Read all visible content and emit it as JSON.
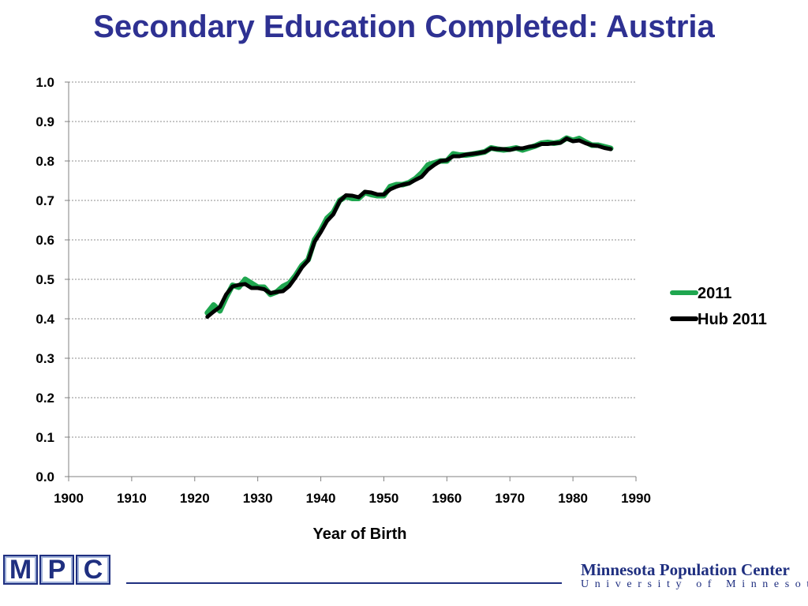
{
  "slide": {
    "title": "Secondary Education Completed: Austria"
  },
  "footer": {
    "logo_letters": [
      "M",
      "P",
      "C"
    ],
    "org_name": "Minnesota Population Center",
    "org_sub": "University of Minnesota"
  },
  "colors": {
    "title": "#2e3192",
    "series_2011": "#1fa64f",
    "series_hub_2011": "#000000",
    "gridline": "#8c8c8c",
    "brand": "#1f2f80"
  },
  "chart_data": {
    "type": "line",
    "title": "Secondary Education Completed: Austria",
    "xlabel": "Year of Birth",
    "ylabel": "",
    "xlim": [
      1900,
      1990
    ],
    "ylim": [
      0.0,
      1.0
    ],
    "x_ticks": [
      "1900",
      "1910",
      "1920",
      "1930",
      "1940",
      "1950",
      "1960",
      "1970",
      "1980",
      "1990"
    ],
    "y_ticks": [
      "0.0",
      "0.1",
      "0.2",
      "0.3",
      "0.4",
      "0.5",
      "0.6",
      "0.7",
      "0.8",
      "0.9",
      "1.0"
    ],
    "grid": "horizontal-dashed",
    "legend_position": "right",
    "series": [
      {
        "name": "2011",
        "color": "#1fa64f",
        "x": [
          1922,
          1923,
          1924,
          1925,
          1926,
          1927,
          1928,
          1929,
          1930,
          1931,
          1932,
          1933,
          1934,
          1935,
          1936,
          1937,
          1938,
          1939,
          1940,
          1941,
          1942,
          1943,
          1944,
          1945,
          1946,
          1947,
          1948,
          1949,
          1950,
          1951,
          1952,
          1953,
          1954,
          1955,
          1956,
          1957,
          1958,
          1959,
          1960,
          1961,
          1962,
          1963,
          1964,
          1965,
          1966,
          1967,
          1968,
          1969,
          1970,
          1971,
          1972,
          1973,
          1974,
          1975,
          1976,
          1977,
          1978,
          1979,
          1980,
          1981,
          1982,
          1983,
          1984,
          1985,
          1986
        ],
        "y": [
          0.415,
          0.435,
          0.42,
          0.455,
          0.485,
          0.48,
          0.5,
          0.49,
          0.48,
          0.48,
          0.462,
          0.468,
          0.482,
          0.49,
          0.51,
          0.535,
          0.55,
          0.6,
          0.625,
          0.655,
          0.67,
          0.7,
          0.71,
          0.705,
          0.705,
          0.72,
          0.715,
          0.712,
          0.712,
          0.735,
          0.74,
          0.74,
          0.745,
          0.755,
          0.77,
          0.79,
          0.795,
          0.8,
          0.8,
          0.818,
          0.815,
          0.815,
          0.817,
          0.82,
          0.823,
          0.833,
          0.83,
          0.828,
          0.83,
          0.833,
          0.828,
          0.833,
          0.838,
          0.845,
          0.847,
          0.845,
          0.848,
          0.858,
          0.852,
          0.857,
          0.848,
          0.84,
          0.84,
          0.836,
          0.832
        ]
      },
      {
        "name": "Hub 2011",
        "color": "#000000",
        "x": [
          1922,
          1923,
          1924,
          1925,
          1926,
          1927,
          1928,
          1929,
          1930,
          1931,
          1932,
          1933,
          1934,
          1935,
          1936,
          1937,
          1938,
          1939,
          1940,
          1941,
          1942,
          1943,
          1944,
          1945,
          1946,
          1947,
          1948,
          1949,
          1950,
          1951,
          1952,
          1953,
          1954,
          1955,
          1956,
          1957,
          1958,
          1959,
          1960,
          1961,
          1962,
          1963,
          1964,
          1965,
          1966,
          1967,
          1968,
          1969,
          1970,
          1971,
          1972,
          1973,
          1974,
          1975,
          1976,
          1977,
          1978,
          1979,
          1980,
          1981,
          1982,
          1983,
          1984,
          1985,
          1986
        ],
        "y": [
          0.405,
          0.418,
          0.43,
          0.462,
          0.482,
          0.486,
          0.488,
          0.478,
          0.478,
          0.475,
          0.465,
          0.468,
          0.47,
          0.483,
          0.505,
          0.53,
          0.548,
          0.595,
          0.62,
          0.648,
          0.665,
          0.698,
          0.713,
          0.712,
          0.708,
          0.722,
          0.72,
          0.715,
          0.715,
          0.728,
          0.735,
          0.74,
          0.743,
          0.752,
          0.76,
          0.778,
          0.79,
          0.8,
          0.802,
          0.812,
          0.812,
          0.816,
          0.818,
          0.82,
          0.823,
          0.832,
          0.83,
          0.83,
          0.828,
          0.832,
          0.832,
          0.836,
          0.838,
          0.843,
          0.843,
          0.845,
          0.846,
          0.857,
          0.85,
          0.852,
          0.845,
          0.84,
          0.838,
          0.833,
          0.83
        ]
      }
    ]
  }
}
